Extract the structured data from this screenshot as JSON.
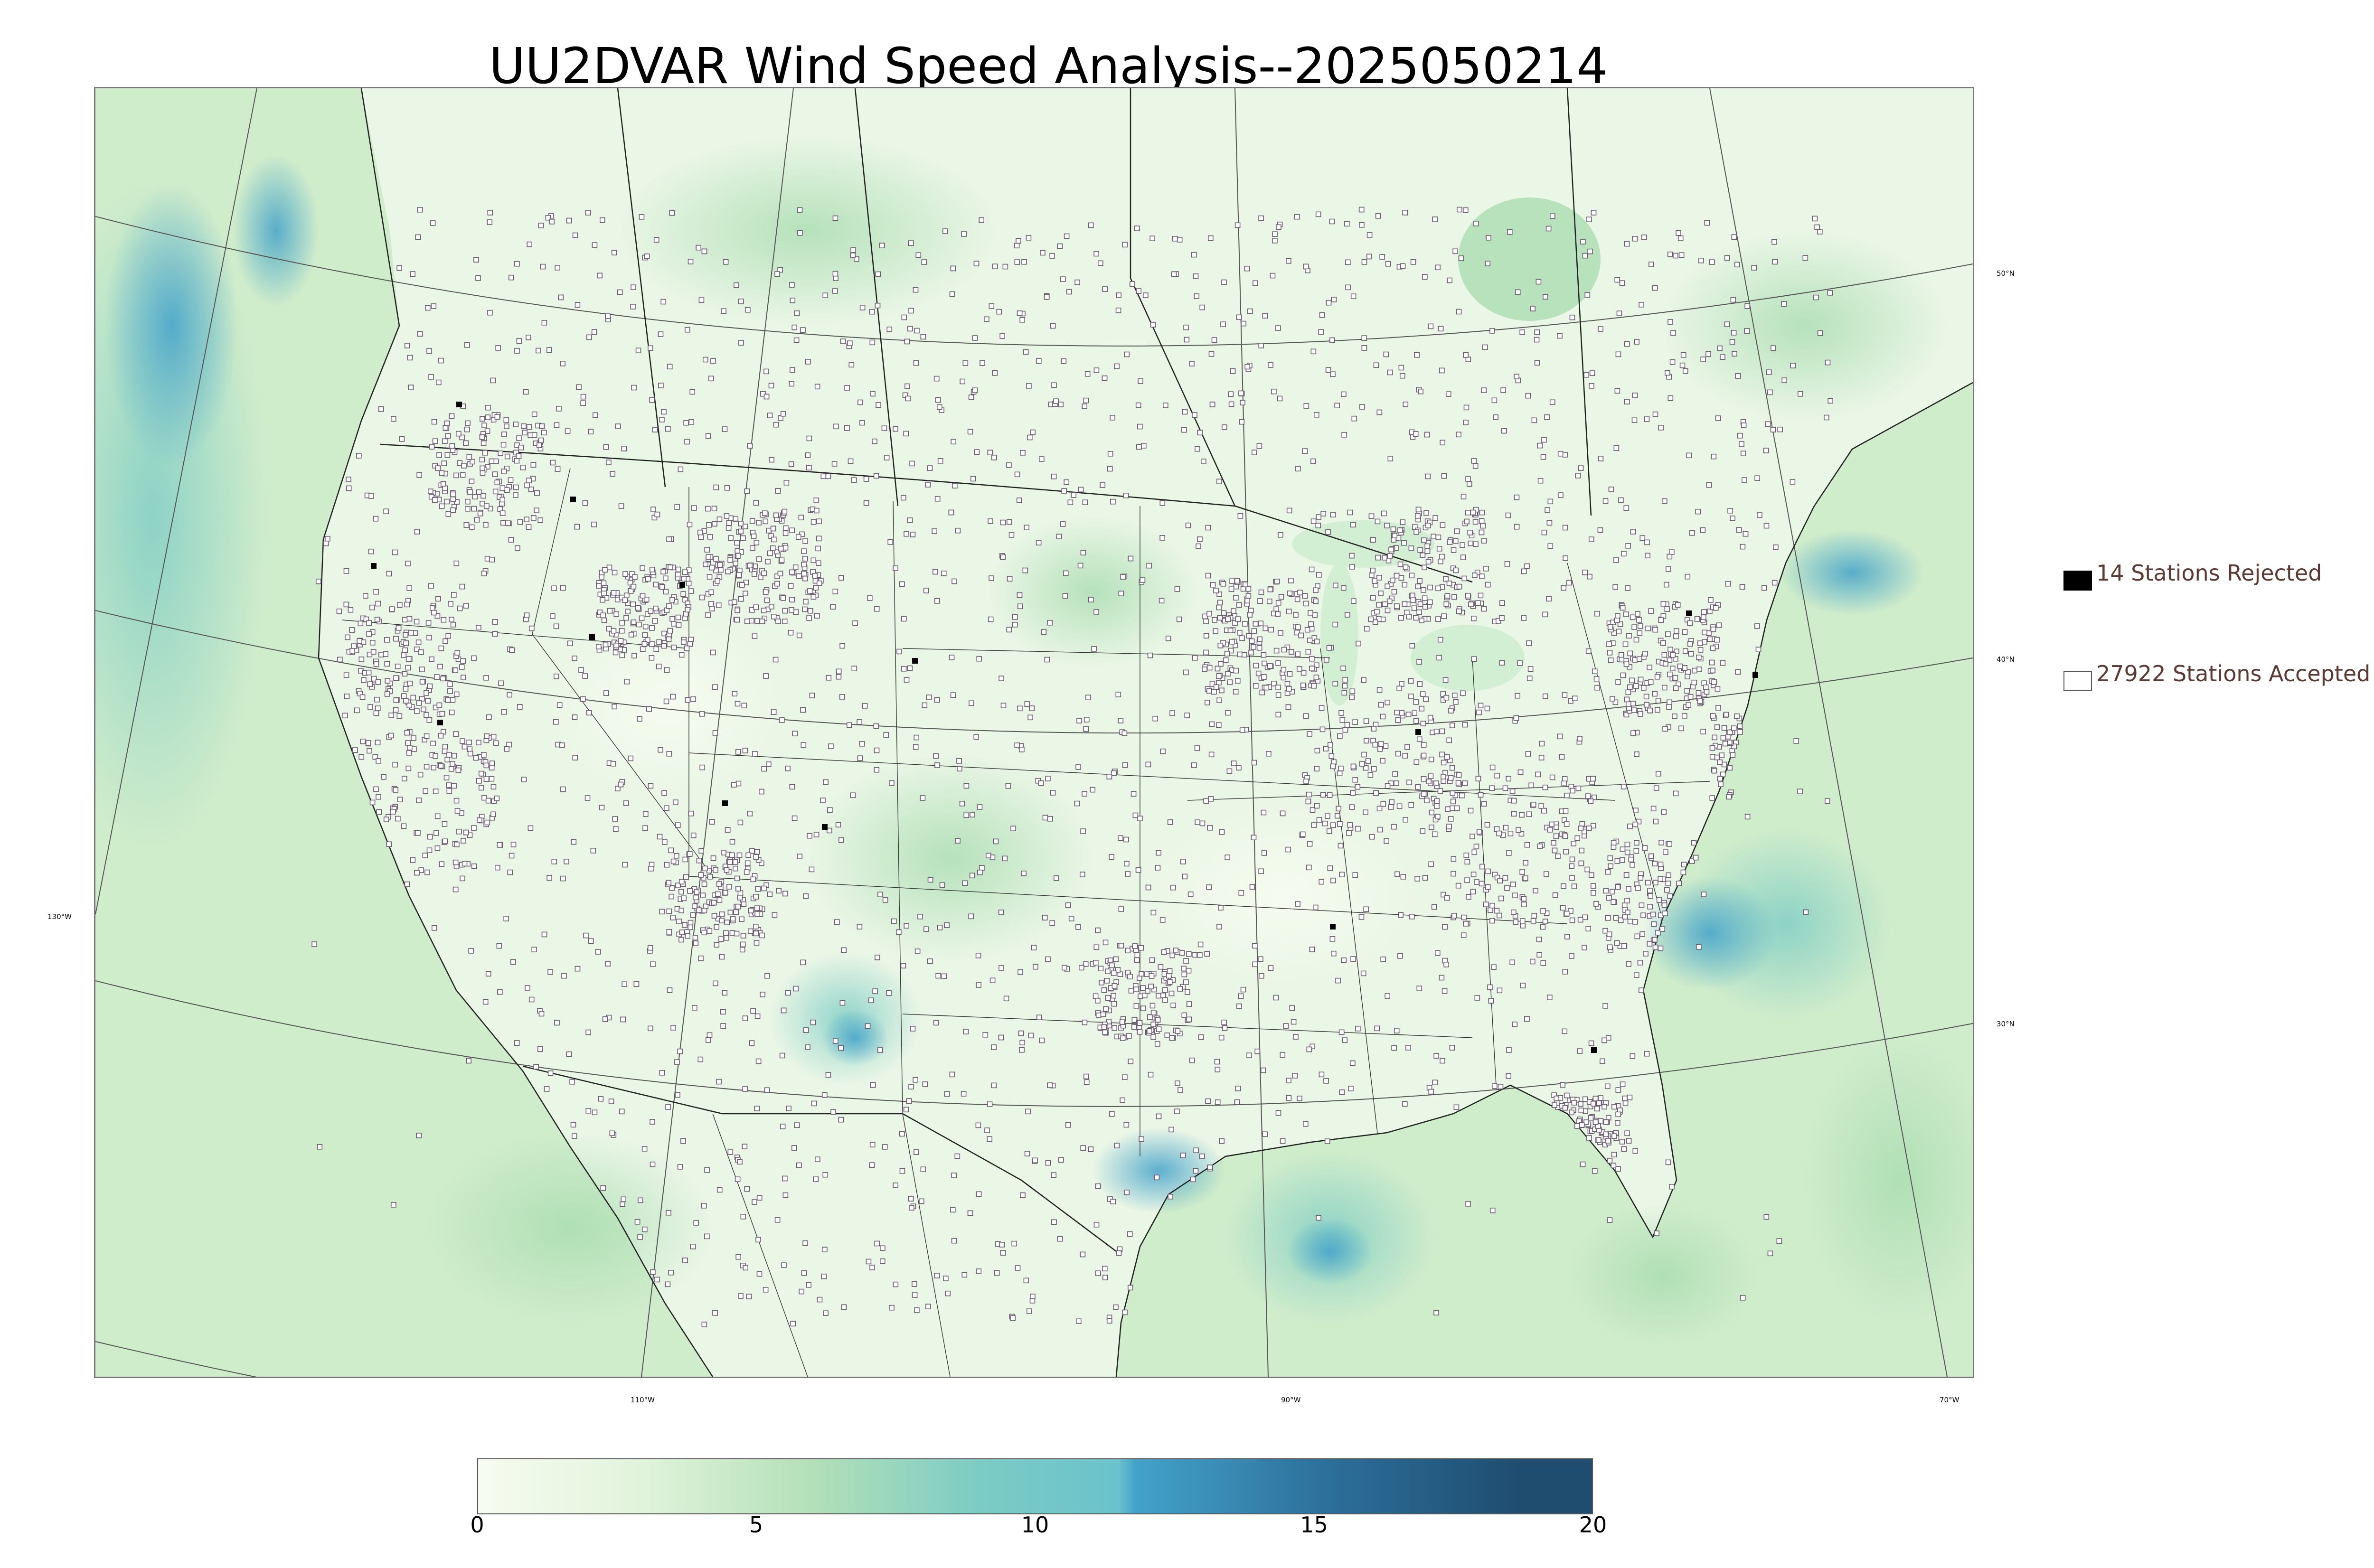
{
  "title": "UU2DVAR Wind Speed Analysis--2025050214",
  "map": {
    "parallel_labels": [
      "50°N",
      "40°N",
      "30°N"
    ],
    "meridian_labels": [
      "130°W",
      "110°W",
      "90°W",
      "70°W"
    ],
    "colors": {
      "land_base": "#eaf6e6",
      "ocean_base": "#cfeccb",
      "strong_wind": "#4aa3cf",
      "station_accepted_fill": "#ffffff",
      "station_outline": "#6a5a70",
      "station_rejected": "#000000",
      "borders": "#222222"
    }
  },
  "legend": {
    "rejected_label": "14 Stations Rejected",
    "accepted_label": "27922 Stations Accepted"
  },
  "colorbar": {
    "min": 0,
    "max": 20,
    "ticks": [
      "0",
      "5",
      "10",
      "15",
      "20"
    ],
    "stops": [
      {
        "value": 0,
        "color": "#f7fcf0"
      },
      {
        "value": 3,
        "color": "#e0f3db"
      },
      {
        "value": 6,
        "color": "#b3e0b8"
      },
      {
        "value": 9,
        "color": "#7cccc4"
      },
      {
        "value": 11.5,
        "color": "#6ac2cc"
      },
      {
        "value": 11.8,
        "color": "#43a2ca"
      },
      {
        "value": 15.3,
        "color": "#2c6f9a"
      },
      {
        "value": 18.7,
        "color": "#1f4d70"
      },
      {
        "value": 20,
        "color": "#1f4d70"
      }
    ]
  }
}
